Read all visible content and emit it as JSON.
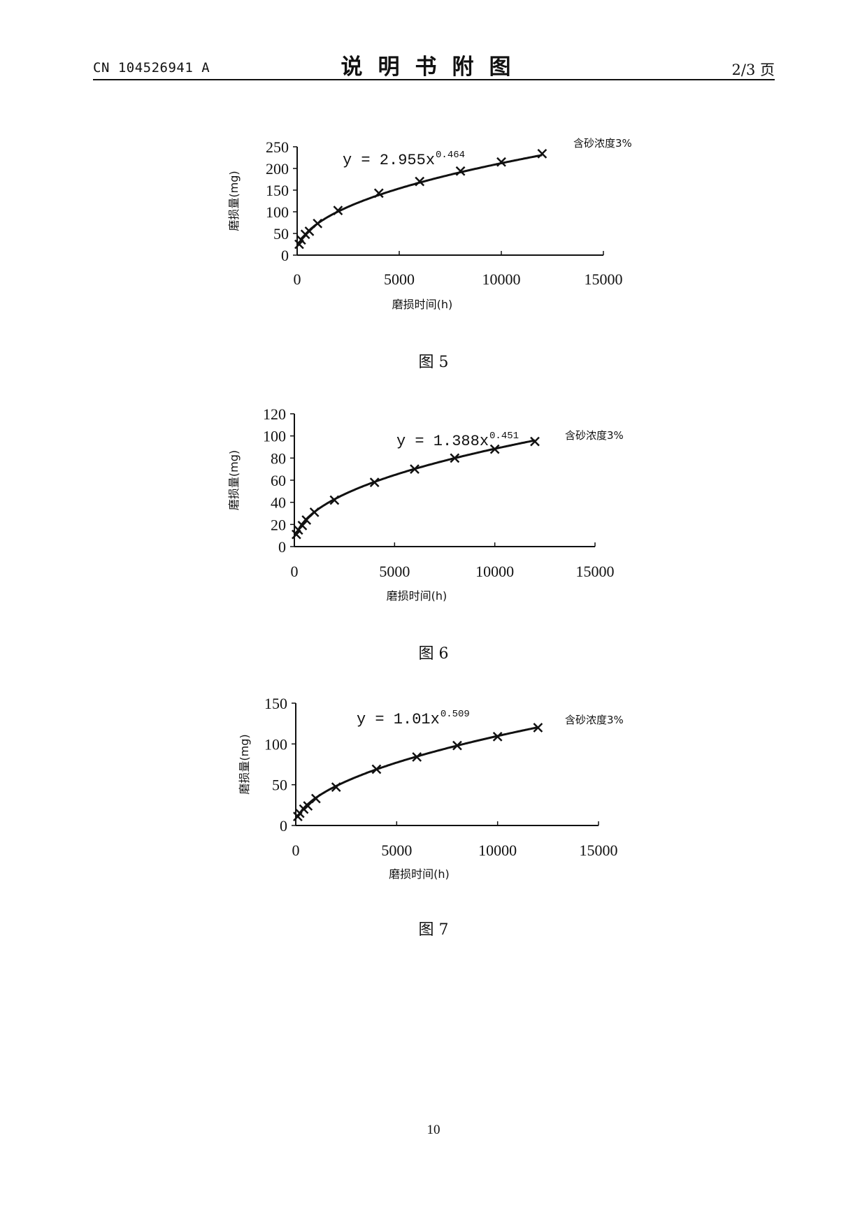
{
  "header": {
    "doc_number": "CN 104526941 A",
    "title": "说明书附图",
    "page_of": "2/3 页"
  },
  "figures": [
    {
      "caption": "图 5"
    },
    {
      "caption": "图 6"
    },
    {
      "caption": "图 7"
    }
  ],
  "page_number": "10",
  "chart_data": [
    {
      "type": "scatter",
      "title": "",
      "xlabel": "磨损时间(h)",
      "ylabel": "磨损量(mg)",
      "xlim": [
        0,
        15000
      ],
      "ylim": [
        0,
        250
      ],
      "xticks": [
        "0",
        "5000",
        "10000",
        "15000"
      ],
      "yticks": [
        "0",
        "50",
        "100",
        "150",
        "200",
        "250"
      ],
      "equation": {
        "base": "y = 2.955x",
        "exponent": "0.464"
      },
      "annotation": "含砂浓度3%",
      "trendline": {
        "kind": "power",
        "a": 2.955,
        "b": 0.464
      },
      "marker": "x",
      "x": [
        100,
        200,
        400,
        600,
        1000,
        2000,
        4000,
        6000,
        8000,
        10000,
        12000
      ],
      "y": [
        25,
        35,
        48,
        55,
        73,
        103,
        143,
        170,
        194,
        215,
        234
      ]
    },
    {
      "type": "scatter",
      "title": "",
      "xlabel": "磨损时间(h)",
      "ylabel": "磨损量(mg)",
      "xlim": [
        0,
        15000
      ],
      "ylim": [
        0,
        120
      ],
      "xticks": [
        "0",
        "5000",
        "10000",
        "15000"
      ],
      "yticks": [
        "0",
        "20",
        "40",
        "60",
        "80",
        "100",
        "120"
      ],
      "equation": {
        "base": "y = 1.388x",
        "exponent": "0.451"
      },
      "annotation": "含砂浓度3%",
      "trendline": {
        "kind": "power",
        "a": 1.388,
        "b": 0.451
      },
      "marker": "x",
      "x": [
        100,
        200,
        400,
        600,
        1000,
        2000,
        4000,
        6000,
        8000,
        10000,
        12000
      ],
      "y": [
        11,
        15,
        19,
        24,
        31,
        42,
        58,
        70,
        80,
        88,
        95
      ]
    },
    {
      "type": "scatter",
      "title": "",
      "xlabel": "磨损时间(h)",
      "ylabel": "磨损量(mg)",
      "xlim": [
        0,
        15000
      ],
      "ylim": [
        0,
        150
      ],
      "xticks": [
        "0",
        "5000",
        "10000",
        "15000"
      ],
      "yticks": [
        "0",
        "50",
        "100",
        "150"
      ],
      "equation": {
        "base": "y = 1.01x",
        "exponent": "0.509"
      },
      "annotation": "含砂浓度3%",
      "trendline": {
        "kind": "power",
        "a": 1.01,
        "b": 0.509
      },
      "marker": "x",
      "x": [
        100,
        200,
        400,
        600,
        1000,
        2000,
        4000,
        6000,
        8000,
        10000,
        12000
      ],
      "y": [
        11,
        15,
        20,
        24,
        33,
        47,
        69,
        84,
        98,
        109,
        120
      ]
    }
  ]
}
